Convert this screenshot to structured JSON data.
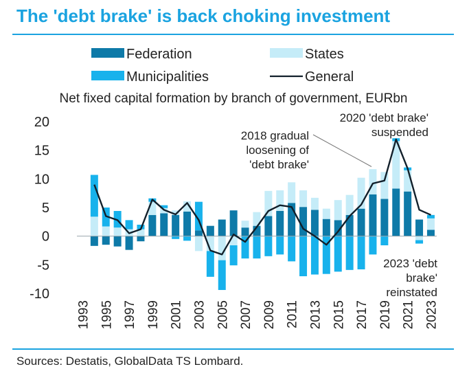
{
  "header": {
    "title": "The 'debt brake' is back choking investment"
  },
  "footer": {
    "source": "Sources: Destatis, GlobalData TS Lombard."
  },
  "colors": {
    "federation": "#0e7aa8",
    "states": "#c5ecf8",
    "municipalities": "#18b2ec",
    "general": "#12202b",
    "accent": "#1aa3e0"
  },
  "chart_data": {
    "type": "bar",
    "stacked": true,
    "title": "Net fixed capital formation by branch of government, EURbn",
    "ylim": [
      -10,
      20
    ],
    "yticks": [
      "20",
      "15",
      "10",
      "5",
      "0",
      "-5",
      "-10"
    ],
    "ytick_values": [
      20,
      15,
      10,
      5,
      0,
      -5,
      -10
    ],
    "xticks": [
      "1993",
      "1995",
      "1997",
      "1999",
      "2001",
      "2003",
      "2005",
      "2007",
      "2009",
      "2011",
      "2013",
      "2015",
      "2017",
      "2019",
      "2021",
      "2023"
    ],
    "categories": [
      1993,
      1994,
      1995,
      1996,
      1997,
      1998,
      1999,
      2000,
      2001,
      2002,
      2003,
      2004,
      2005,
      2006,
      2007,
      2008,
      2009,
      2010,
      2011,
      2012,
      2013,
      2014,
      2015,
      2016,
      2017,
      2018,
      2019,
      2020,
      2021,
      2022,
      2023
    ],
    "legend": [
      {
        "label": "Federation",
        "type": "bar"
      },
      {
        "label": "States",
        "type": "bar"
      },
      {
        "label": "Municipalities",
        "type": "bar"
      },
      {
        "label": "General",
        "type": "line"
      }
    ],
    "series": [
      {
        "name": "Federation",
        "values": [
          null,
          -1.7,
          -1.5,
          -1.8,
          -2.4,
          -0.9,
          3.7,
          4.0,
          3.7,
          4.3,
          1.0,
          1.8,
          2.9,
          4.5,
          1.5,
          1.8,
          3.5,
          4.4,
          5.8,
          5.1,
          4.6,
          3.0,
          2.8,
          3.7,
          4.8,
          7.3,
          6.5,
          8.3,
          7.8,
          2.9,
          1.1
        ]
      },
      {
        "name": "States",
        "values": [
          null,
          3.4,
          1.7,
          1.5,
          1.2,
          1.2,
          2.3,
          0.9,
          0.8,
          1.8,
          -2.6,
          -2.6,
          -4.2,
          -1.6,
          1.2,
          2.4,
          4.4,
          3.6,
          3.6,
          2.9,
          2.1,
          1.8,
          3.5,
          3.5,
          5.4,
          4.4,
          4.7,
          8.3,
          3.7,
          -0.7,
          2.0
        ]
      },
      {
        "name": "Municipalities",
        "values": [
          null,
          7.3,
          3.3,
          2.9,
          1.6,
          0.8,
          0.6,
          0.5,
          -0.5,
          -0.8,
          5.0,
          -4.5,
          -5.2,
          -3.5,
          -3.9,
          -3.9,
          -3.5,
          -3.2,
          -4.4,
          -7.0,
          -6.7,
          -6.6,
          -6.2,
          -5.9,
          -5.8,
          -3.2,
          -1.6,
          0.5,
          0.5,
          -0.6,
          0.6
        ]
      },
      {
        "name": "General",
        "type": "line",
        "values": [
          null,
          9.0,
          3.5,
          2.8,
          0.5,
          1.2,
          6.4,
          4.6,
          3.8,
          5.8,
          2.8,
          -2.5,
          -3.2,
          0.3,
          -1.0,
          1.6,
          4.4,
          5.4,
          5.1,
          1.3,
          0.0,
          -1.5,
          0.8,
          3.5,
          5.5,
          9.2,
          9.7,
          16.9,
          11.8,
          4.6,
          3.7
        ]
      }
    ],
    "annotations": {
      "a2018": [
        "2018 gradual",
        "loosening of",
        "'debt brake'"
      ],
      "a2020": [
        "2020 'debt brake'",
        "suspended"
      ],
      "a2023": [
        "2023 'debt",
        "brake'",
        "reinstated"
      ]
    }
  }
}
